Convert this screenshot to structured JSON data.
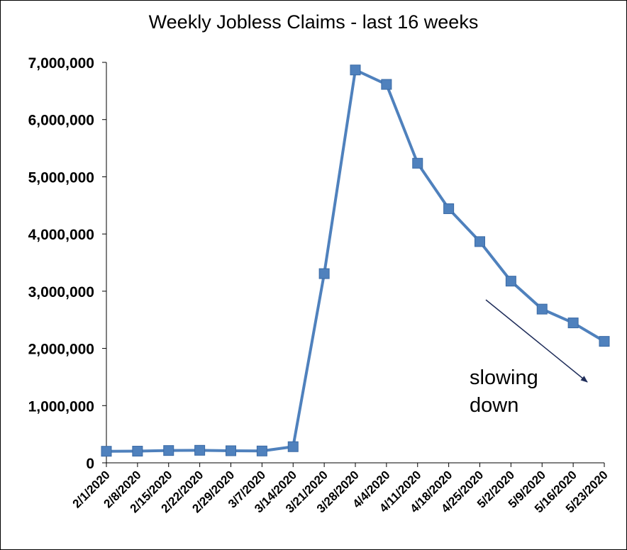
{
  "chart_data": {
    "type": "line",
    "title": "Weekly Jobless Claims - last 16 weeks",
    "xlabel": "",
    "ylabel": "",
    "categories": [
      "2/1/2020",
      "2/8/2020",
      "2/15/2020",
      "2/22/2020",
      "2/29/2020",
      "3/7/2020",
      "3/14/2020",
      "3/21/2020",
      "3/28/2020",
      "4/4/2020",
      "4/11/2020",
      "4/18/2020",
      "4/25/2020",
      "5/2/2020",
      "5/9/2020",
      "5/16/2020",
      "5/23/2020"
    ],
    "series": [
      {
        "values": [
          202000,
          204000,
          215000,
          219000,
          211000,
          207000,
          282000,
          3307000,
          6867000,
          6615000,
          5237000,
          4442000,
          3867000,
          3176000,
          2687000,
          2446000,
          2123000
        ]
      }
    ],
    "ylim": [
      0,
      7000000
    ],
    "yticks": [
      0,
      1000000,
      2000000,
      3000000,
      4000000,
      5000000,
      6000000,
      7000000
    ],
    "ytick_labels": [
      "0",
      "1,000,000",
      "2,000,000",
      "3,000,000",
      "4,000,000",
      "5,000,000",
      "6,000,000",
      "7,000,000"
    ],
    "grid": false,
    "legend": "none",
    "marker": "square",
    "line_color": "#4f81bd",
    "annotation": {
      "lines": [
        "slowing",
        "down"
      ],
      "arrow_color": "#1f2d5a"
    }
  }
}
